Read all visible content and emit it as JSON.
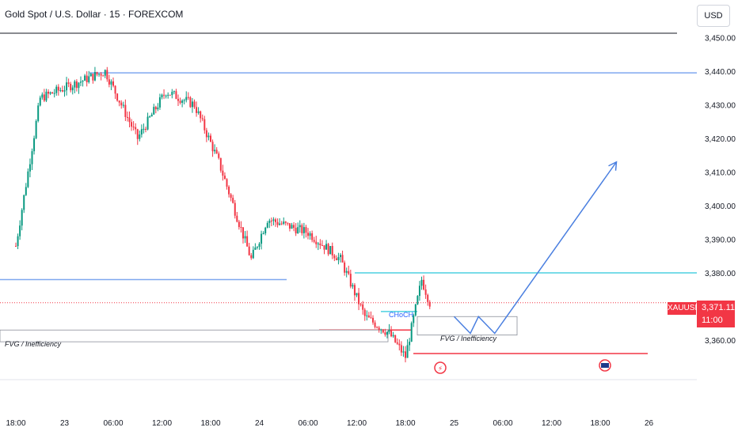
{
  "header": {
    "title": "Gold Spot / U.S. Dollar · 15 · FOREXCOM",
    "currency": "USD"
  },
  "price_flag": {
    "symbol": "XAUUSD",
    "price": "3,371.11",
    "countdown": "11:00",
    "color": "#f23645"
  },
  "annotations": {
    "choch": "CHoCH",
    "fvg_left": "FVG / Inefficiency",
    "fvg_right": "FVG / Inefficiency"
  },
  "icons": {
    "lightning": "lightning-event-icon",
    "flag": "us-flag-event-icon"
  },
  "colors": {
    "up": "#089981",
    "down": "#f23645",
    "level_blue": "#7fa7ef",
    "level_cyan": "#4dd0e1",
    "projection": "#4a7fe0"
  },
  "chart_data": {
    "type": "candlestick",
    "y_axis": {
      "ticks": [
        "3,450.00",
        "3,440.00",
        "3,430.00",
        "3,420.00",
        "3,410.00",
        "3,400.00",
        "3,390.00",
        "3,380.00",
        "3,360.00"
      ],
      "tick_values": [
        3450,
        3440,
        3430,
        3420,
        3410,
        3400,
        3390,
        3380,
        3360
      ],
      "range": [
        3350,
        3455
      ]
    },
    "x_axis": {
      "ticks": [
        "18:00",
        "23",
        "06:00",
        "12:00",
        "18:00",
        "24",
        "06:00",
        "12:00",
        "18:00",
        "25",
        "06:00",
        "12:00",
        "18:00",
        "26"
      ]
    },
    "key_points": [
      {
        "x": "22 18:00",
        "price": 3388
      },
      {
        "x": "22 21:00",
        "price": 3432
      },
      {
        "x": "23 05:00",
        "price": 3440
      },
      {
        "x": "23 09:00",
        "price": 3420
      },
      {
        "x": "23 12:30",
        "price": 3434
      },
      {
        "x": "23 16:00",
        "price": 3430
      },
      {
        "x": "23 19:00",
        "price": 3413
      },
      {
        "x": "23 23:00",
        "price": 3384
      },
      {
        "x": "24 01:00",
        "price": 3396
      },
      {
        "x": "24 06:00",
        "price": 3392
      },
      {
        "x": "24 10:00",
        "price": 3384
      },
      {
        "x": "24 13:00",
        "price": 3367
      },
      {
        "x": "24 16:00",
        "price": 3362
      },
      {
        "x": "24 18:00",
        "price": 3355
      },
      {
        "x": "24 20:00",
        "price": 3378
      },
      {
        "x": "24 21:00",
        "price": 3371.11
      }
    ],
    "levels": [
      {
        "price": 3439.5,
        "color": "blue"
      },
      {
        "price": 3378,
        "color": "blue"
      },
      {
        "price": 3380,
        "color": "cyan"
      },
      {
        "price": 3363,
        "color": "red"
      },
      {
        "price": 3356,
        "color": "red"
      }
    ],
    "current_price": 3371.11,
    "projection": [
      {
        "x": "25 00:00",
        "price": 3367
      },
      {
        "x": "25 02:00",
        "price": 3362
      },
      {
        "x": "25 03:00",
        "price": 3367
      },
      {
        "x": "25 05:00",
        "price": 3362
      },
      {
        "x": "25 20:00",
        "price": 3413
      }
    ]
  }
}
